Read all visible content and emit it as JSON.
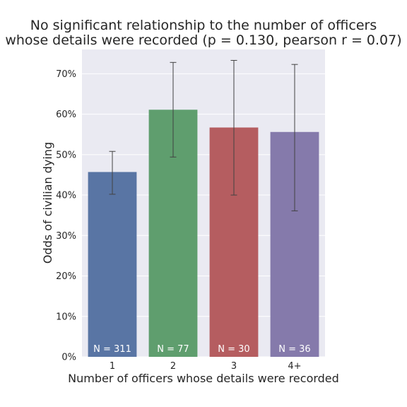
{
  "chart_data": {
    "type": "bar",
    "title_lines": [
      "No significant relationship to the number of officers",
      "whose details were recorded (p = 0.130, pearson r = 0.07)"
    ],
    "xlabel": "Number of officers whose details were recorded",
    "ylabel": "Odds of civilian dying",
    "categories": [
      "1",
      "2",
      "3",
      "4+"
    ],
    "values": [
      0.457,
      0.611,
      0.567,
      0.556
    ],
    "error_low": [
      0.402,
      0.494,
      0.4,
      0.361
    ],
    "error_high": [
      0.508,
      0.728,
      0.733,
      0.723
    ],
    "counts": [
      "N = 311",
      "N = 77",
      "N = 30",
      "N = 36"
    ],
    "colors": [
      "#5975a4",
      "#5f9e6e",
      "#b55d60",
      "#857aab"
    ],
    "ylim": [
      0,
      0.76
    ],
    "yticks": [
      0,
      0.1,
      0.2,
      0.3,
      0.4,
      0.5,
      0.6,
      0.7
    ],
    "ytick_labels": [
      "0%",
      "10%",
      "20%",
      "30%",
      "40%",
      "50%",
      "60%",
      "70%"
    ],
    "grid": true,
    "background": "#eaeaf2"
  }
}
